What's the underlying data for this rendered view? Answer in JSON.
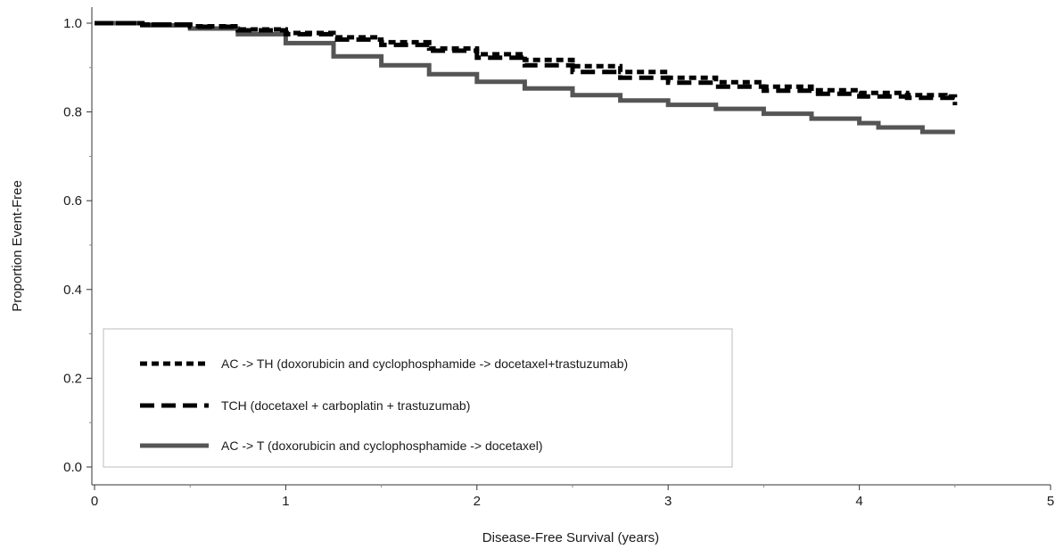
{
  "chart_data": {
    "type": "line",
    "title": "",
    "xlabel": "Disease-Free Survival (years)",
    "ylabel": "Proportion Event-Free",
    "xlim": [
      0,
      5
    ],
    "ylim": [
      0,
      1
    ],
    "xticks": [
      0,
      1,
      2,
      3,
      4,
      5
    ],
    "yticks": [
      0.0,
      0.2,
      0.4,
      0.6,
      0.8,
      1.0
    ],
    "xtick_labels": [
      "0",
      "1",
      "2",
      "3",
      "4",
      "5"
    ],
    "ytick_labels": [
      "0.0",
      "0.2",
      "0.4",
      "0.6",
      "0.8",
      "1.0"
    ],
    "grid": false,
    "legend_position": "bottom-left",
    "series": [
      {
        "name": "AC -> TH (doxorubicin and cyclophosphamide -> docetaxel+trastuzumab)",
        "style": "dotted",
        "color": "#000000",
        "x": [
          0,
          0.25,
          0.5,
          0.75,
          1.0,
          1.25,
          1.5,
          1.75,
          2.0,
          2.25,
          2.5,
          2.75,
          3.0,
          3.25,
          3.5,
          3.75,
          4.0,
          4.25,
          4.45,
          4.5
        ],
        "y": [
          1.0,
          0.997,
          0.993,
          0.986,
          0.978,
          0.968,
          0.957,
          0.943,
          0.93,
          0.917,
          0.903,
          0.89,
          0.877,
          0.867,
          0.857,
          0.849,
          0.843,
          0.838,
          0.835,
          0.815
        ]
      },
      {
        "name": "TCH (docetaxel + carboplatin + trastuzumab)",
        "style": "dashed",
        "color": "#000000",
        "x": [
          0,
          0.25,
          0.5,
          0.75,
          1.0,
          1.25,
          1.5,
          1.75,
          2.0,
          2.25,
          2.5,
          2.75,
          3.0,
          3.25,
          3.5,
          3.75,
          4.0,
          4.25,
          4.5
        ],
        "y": [
          1.0,
          0.997,
          0.992,
          0.984,
          0.975,
          0.963,
          0.951,
          0.938,
          0.922,
          0.905,
          0.89,
          0.877,
          0.866,
          0.857,
          0.848,
          0.841,
          0.835,
          0.832,
          0.83
        ]
      },
      {
        "name": "AC -> T (doxorubicin and cyclophosphamide -> docetaxel)",
        "style": "solid",
        "color": "#555555",
        "x": [
          0,
          0.25,
          0.5,
          0.75,
          1.0,
          1.25,
          1.5,
          1.75,
          2.0,
          2.25,
          2.5,
          2.75,
          3.0,
          3.25,
          3.5,
          3.75,
          4.0,
          4.1,
          4.33,
          4.5
        ],
        "y": [
          1.0,
          0.995,
          0.988,
          0.975,
          0.955,
          0.925,
          0.905,
          0.885,
          0.868,
          0.853,
          0.838,
          0.826,
          0.816,
          0.807,
          0.796,
          0.785,
          0.775,
          0.765,
          0.755,
          0.755
        ]
      }
    ]
  }
}
